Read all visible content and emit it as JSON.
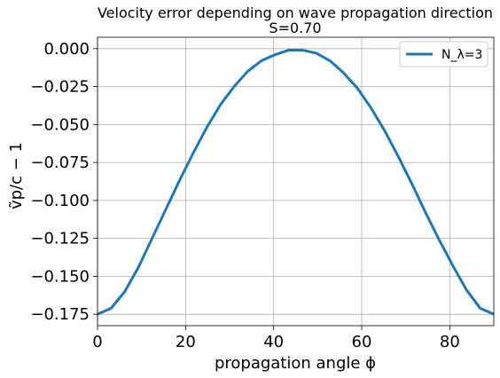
{
  "chart_data": {
    "type": "line",
    "title": "Velocity error depending on wave propagation direction",
    "subtitle": "S=0.70",
    "xlabel": "propagation angle ϕ",
    "ylabel": "ṽp/c − 1",
    "xlim": [
      0,
      90
    ],
    "ylim": [
      -0.1825,
      0.0075
    ],
    "xticks": [
      0,
      20,
      40,
      60,
      80
    ],
    "xtick_labels": [
      "0",
      "20",
      "40",
      "60",
      "80"
    ],
    "yticks": [
      0.0,
      -0.025,
      -0.05,
      -0.075,
      -0.1,
      -0.125,
      -0.15,
      -0.175
    ],
    "ytick_labels": [
      "0.000",
      "−0.025",
      "−0.050",
      "−0.075",
      "−0.100",
      "−0.125",
      "−0.150",
      "−0.175"
    ],
    "grid": true,
    "legend_position": "top-right",
    "series": [
      {
        "name": "N_λ=3",
        "color": "#1f77b4",
        "x": [
          0,
          3.1,
          6.2,
          9.3,
          12.4,
          15.5,
          18.6,
          21.7,
          24.8,
          27.9,
          31.0,
          34.1,
          37.2,
          40.3,
          43.4,
          46.6,
          49.7,
          52.8,
          55.9,
          59.0,
          62.1,
          65.2,
          68.3,
          71.4,
          74.5,
          77.6,
          80.7,
          83.8,
          86.9,
          90
        ],
        "y": [
          -0.175,
          -0.171,
          -0.16,
          -0.144,
          -0.125,
          -0.106,
          -0.087,
          -0.069,
          -0.052,
          -0.037,
          -0.025,
          -0.015,
          -0.008,
          -0.004,
          -0.001,
          -0.001,
          -0.003,
          -0.008,
          -0.016,
          -0.026,
          -0.039,
          -0.054,
          -0.071,
          -0.089,
          -0.108,
          -0.126,
          -0.143,
          -0.159,
          -0.171,
          -0.175
        ]
      }
    ]
  }
}
